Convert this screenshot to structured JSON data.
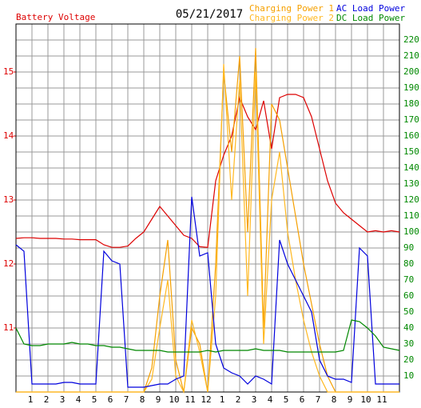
{
  "chart_data": {
    "type": "line",
    "title": "05/21/2017",
    "x": [
      0,
      0.5,
      1,
      1.5,
      2,
      2.5,
      3,
      3.5,
      4,
      4.5,
      5,
      5.5,
      6,
      6.5,
      7,
      7.5,
      8,
      8.5,
      9,
      9.5,
      10,
      10.5,
      11,
      11.5,
      12,
      12.5,
      13,
      13.5,
      14,
      14.5,
      15,
      15.5,
      16,
      16.5,
      17,
      17.5,
      18,
      18.5,
      19,
      19.5,
      20,
      20.5,
      21,
      21.5,
      22,
      22.5,
      23,
      23.5,
      24
    ],
    "xlim": [
      0,
      24
    ],
    "xticks": [
      1,
      2,
      3,
      4,
      5,
      6,
      7,
      8,
      9,
      10,
      11,
      12,
      {
        "value": 13,
        "label": "1"
      },
      {
        "value": 14,
        "label": "2"
      },
      {
        "value": 15,
        "label": "3"
      },
      {
        "value": 16,
        "label": "4"
      },
      {
        "value": 17,
        "label": "5"
      },
      {
        "value": 18,
        "label": "6"
      },
      {
        "value": 19,
        "label": "7"
      },
      {
        "value": 20,
        "label": "8"
      },
      {
        "value": 21,
        "label": "9"
      },
      {
        "value": 22,
        "label": "10"
      },
      {
        "value": 23,
        "label": "11"
      }
    ],
    "ylim": [
      10,
      15.75
    ],
    "yticks": [
      11,
      12,
      13,
      14,
      15
    ],
    "y2lim": [
      0,
      230
    ],
    "y2ticks": [
      10,
      20,
      30,
      40,
      50,
      60,
      70,
      80,
      90,
      100,
      110,
      120,
      130,
      140,
      150,
      160,
      170,
      180,
      190,
      200,
      210,
      220
    ],
    "grid": true,
    "series": [
      {
        "name": "Battery Voltage",
        "color": "#dd0000",
        "axis": "y",
        "values": [
          12.4,
          12.41,
          12.41,
          12.4,
          12.4,
          12.4,
          12.39,
          12.39,
          12.38,
          12.38,
          12.38,
          12.3,
          12.26,
          12.26,
          12.28,
          12.4,
          12.5,
          12.7,
          12.9,
          12.75,
          12.6,
          12.45,
          12.4,
          12.27,
          12.26,
          13.3,
          13.7,
          14.0,
          14.6,
          14.3,
          14.1,
          14.55,
          13.8,
          14.6,
          14.65,
          14.65,
          14.6,
          14.3,
          13.8,
          13.3,
          12.95,
          12.8,
          12.7,
          12.6,
          12.5,
          12.52,
          12.5,
          12.52,
          12.5
        ]
      },
      {
        "name": "Charging Power 1",
        "color": "#f5a000",
        "axis": "y2",
        "values": [
          0,
          0,
          0,
          0,
          0,
          0,
          0,
          0,
          0,
          0,
          0,
          0,
          0,
          0,
          0,
          0,
          0,
          15,
          60,
          95,
          20,
          0,
          40,
          30,
          0,
          80,
          200,
          150,
          210,
          100,
          215,
          40,
          180,
          170,
          140,
          110,
          80,
          55,
          30,
          10,
          0,
          0,
          0,
          0,
          0,
          0,
          0,
          0,
          0
        ]
      },
      {
        "name": "Charging Power 2",
        "color": "#ffb820",
        "axis": "y2",
        "values": [
          0,
          0,
          0,
          0,
          0,
          0,
          0,
          0,
          0,
          0,
          0,
          0,
          0,
          0,
          0,
          0,
          0,
          8,
          40,
          70,
          10,
          0,
          45,
          25,
          0,
          60,
          205,
          120,
          195,
          60,
          200,
          30,
          120,
          150,
          100,
          70,
          45,
          25,
          10,
          0,
          0,
          0,
          0,
          0,
          0,
          0,
          0,
          0,
          0
        ]
      },
      {
        "name": "AC Load Power",
        "color": "#0000dd",
        "axis": "y2",
        "values": [
          92,
          88,
          5,
          5,
          5,
          5,
          6,
          6,
          5,
          5,
          5,
          88,
          82,
          80,
          3,
          3,
          3,
          4,
          5,
          5,
          8,
          10,
          122,
          85,
          87,
          30,
          15,
          12,
          10,
          5,
          10,
          8,
          5,
          95,
          80,
          70,
          60,
          50,
          20,
          10,
          8,
          8,
          6,
          90,
          85,
          5,
          5,
          5,
          5
        ]
      },
      {
        "name": "DC Load Power",
        "color": "#008800",
        "axis": "y2",
        "values": [
          40,
          30,
          29,
          29,
          30,
          30,
          30,
          31,
          30,
          30,
          29,
          29,
          28,
          28,
          27,
          26,
          26,
          26,
          26,
          25,
          25,
          25,
          25,
          25,
          26,
          25,
          26,
          26,
          26,
          26,
          27,
          26,
          26,
          26,
          25,
          25,
          25,
          25,
          25,
          25,
          25,
          26,
          45,
          44,
          40,
          35,
          28,
          27,
          26
        ]
      }
    ]
  }
}
